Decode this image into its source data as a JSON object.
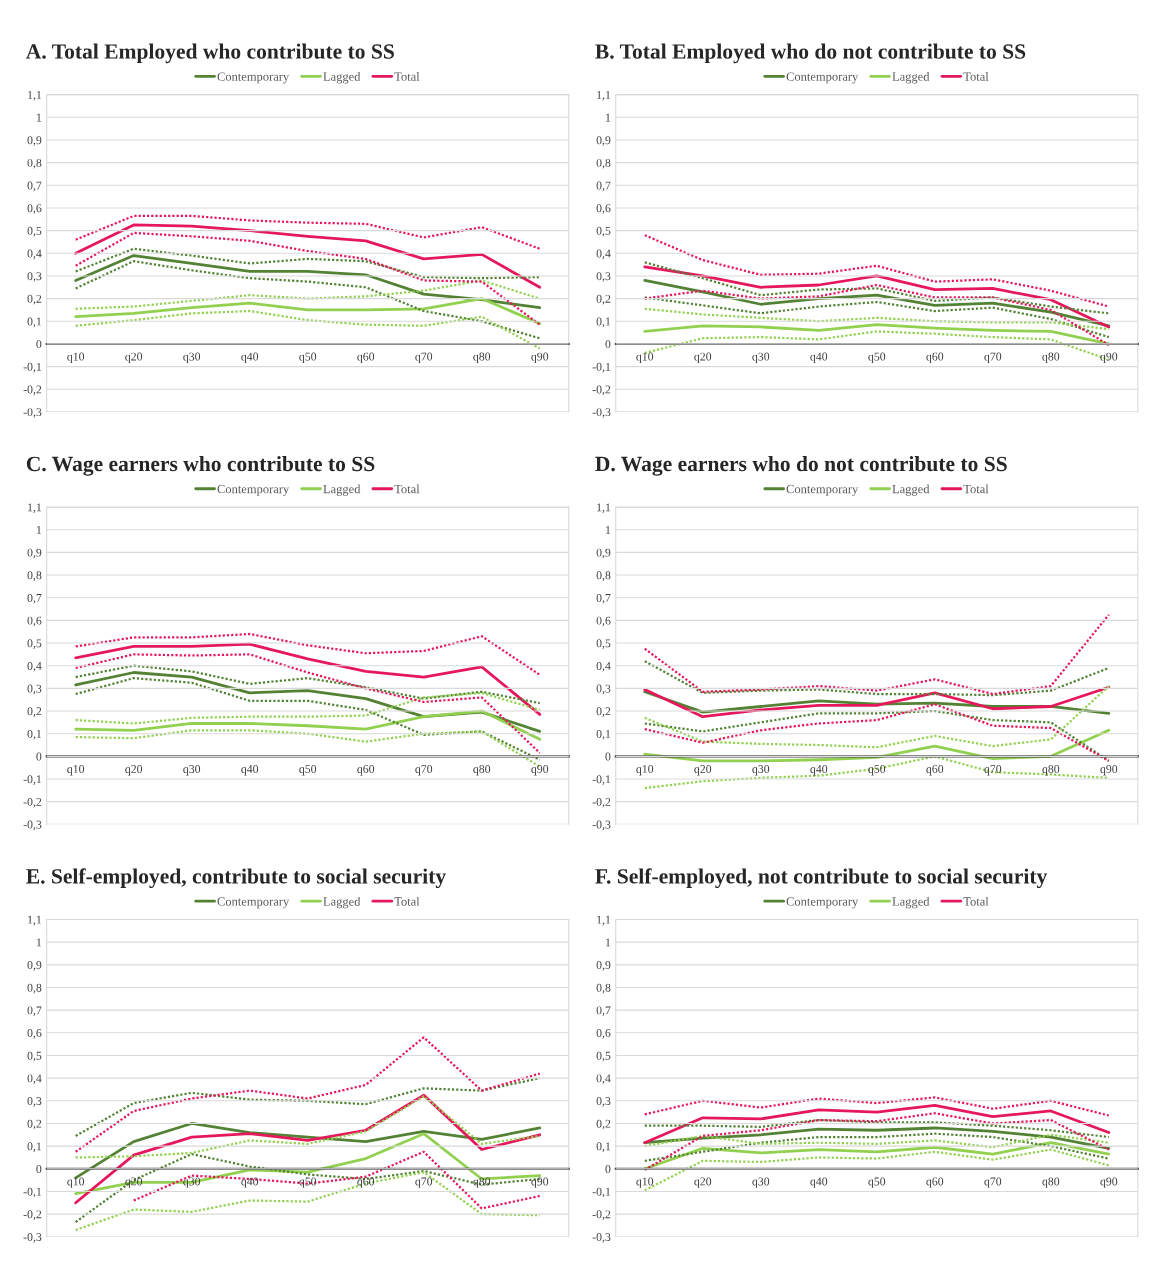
{
  "chart_data": [
    {
      "type": "line",
      "title": "A. Total Employed who contribute to SS",
      "categories": [
        "q10",
        "q20",
        "q30",
        "q40",
        "q50",
        "q60",
        "q70",
        "q80",
        "q90"
      ],
      "ylim": [
        -0.3,
        1.1
      ],
      "yticks": [
        {
          "value": -0.3,
          "label": "-0,3"
        },
        {
          "value": -0.2,
          "label": "-0,2"
        },
        {
          "value": -0.1,
          "label": "-0,1"
        },
        0,
        {
          "value": 0.1,
          "label": "0,1"
        },
        {
          "value": 0.2,
          "label": "0,2"
        },
        {
          "value": 0.3,
          "label": "0,3"
        },
        {
          "value": 0.4,
          "label": "0,4"
        },
        {
          "value": 0.5,
          "label": "0,5"
        },
        {
          "value": 0.6,
          "label": "0,6"
        },
        {
          "value": 0.7,
          "label": "0,7"
        },
        {
          "value": 0.8,
          "label": "0,8"
        },
        {
          "value": 0.9,
          "label": "0,9"
        },
        1,
        {
          "value": 1.1,
          "label": "1,1"
        }
      ],
      "grid": "y",
      "legend": "top",
      "series": [
        {
          "name": "Contemporary",
          "color": "#548235",
          "values": [
            0.28,
            0.39,
            0.355,
            0.32,
            0.32,
            0.305,
            0.22,
            0.195,
            0.16
          ]
        },
        {
          "name": "Lagged",
          "color": "#92d050",
          "values": [
            0.12,
            0.135,
            0.16,
            0.18,
            0.15,
            0.15,
            0.155,
            0.2,
            0.09
          ]
        },
        {
          "name": "Total",
          "color": "#e6185c",
          "values": [
            0.4,
            0.525,
            0.52,
            0.5,
            0.475,
            0.455,
            0.375,
            0.395,
            0.25
          ]
        },
        {
          "color": "#548235",
          "line_style": "dotted",
          "values": [
            0.245,
            0.365,
            0.325,
            0.29,
            0.275,
            0.25,
            0.145,
            0.1,
            0.025
          ]
        },
        {
          "color": "#548235",
          "line_style": "dotted",
          "values": [
            0.32,
            0.42,
            0.39,
            0.355,
            0.375,
            0.365,
            0.295,
            0.29,
            0.295
          ]
        },
        {
          "color": "#92d050",
          "line_style": "dotted",
          "values": [
            0.08,
            0.105,
            0.135,
            0.145,
            0.105,
            0.085,
            0.08,
            0.12,
            -0.02
          ]
        },
        {
          "color": "#92d050",
          "line_style": "dotted",
          "values": [
            0.155,
            0.165,
            0.19,
            0.215,
            0.2,
            0.21,
            0.235,
            0.28,
            0.2
          ]
        },
        {
          "color": "#e6185c",
          "line_style": "dotted",
          "values": [
            0.345,
            0.49,
            0.475,
            0.455,
            0.41,
            0.375,
            0.28,
            0.275,
            0.085
          ]
        },
        {
          "color": "#e6185c",
          "line_style": "dotted",
          "values": [
            0.46,
            0.565,
            0.565,
            0.545,
            0.535,
            0.53,
            0.47,
            0.515,
            0.42
          ]
        }
      ]
    },
    {
      "type": "line",
      "title": "B. Total Employed who do not contribute to SS",
      "categories": [
        "q10",
        "q20",
        "q30",
        "q40",
        "q50",
        "q60",
        "q70",
        "q80",
        "q90"
      ],
      "ylim": [
        -0.3,
        1.1
      ],
      "yticks": [
        {
          "value": -0.3,
          "label": "-0,3"
        },
        {
          "value": -0.2,
          "label": "-0,2"
        },
        {
          "value": -0.1,
          "label": "-0,1"
        },
        0,
        {
          "value": 0.1,
          "label": "0,1"
        },
        {
          "value": 0.2,
          "label": "0,2"
        },
        {
          "value": 0.3,
          "label": "0,3"
        },
        {
          "value": 0.4,
          "label": "0,4"
        },
        {
          "value": 0.5,
          "label": "0,5"
        },
        {
          "value": 0.6,
          "label": "0,6"
        },
        {
          "value": 0.7,
          "label": "0,7"
        },
        {
          "value": 0.8,
          "label": "0,8"
        },
        {
          "value": 0.9,
          "label": "0,9"
        },
        1,
        {
          "value": 1.1,
          "label": "1,1"
        }
      ],
      "grid": "y",
      "legend": "top",
      "series": [
        {
          "name": "Contemporary",
          "color": "#548235",
          "values": [
            0.28,
            0.23,
            0.175,
            0.2,
            0.215,
            0.17,
            0.18,
            0.14,
            0.08
          ]
        },
        {
          "name": "Lagged",
          "color": "#92d050",
          "values": [
            0.055,
            0.08,
            0.075,
            0.06,
            0.085,
            0.07,
            0.06,
            0.055,
            0.0
          ]
        },
        {
          "name": "Total",
          "color": "#e6185c",
          "values": [
            0.34,
            0.3,
            0.25,
            0.26,
            0.3,
            0.24,
            0.245,
            0.195,
            0.075
          ]
        },
        {
          "color": "#548235",
          "line_style": "dotted",
          "values": [
            0.205,
            0.17,
            0.135,
            0.165,
            0.185,
            0.145,
            0.16,
            0.11,
            0.03
          ]
        },
        {
          "color": "#548235",
          "line_style": "dotted",
          "values": [
            0.36,
            0.29,
            0.215,
            0.24,
            0.245,
            0.19,
            0.205,
            0.165,
            0.135
          ]
        },
        {
          "color": "#92d050",
          "line_style": "dotted",
          "values": [
            -0.04,
            0.025,
            0.03,
            0.02,
            0.055,
            0.045,
            0.03,
            0.02,
            -0.07
          ]
        },
        {
          "color": "#92d050",
          "line_style": "dotted",
          "values": [
            0.155,
            0.13,
            0.115,
            0.1,
            0.115,
            0.1,
            0.095,
            0.095,
            0.065
          ]
        },
        {
          "color": "#e6185c",
          "line_style": "dotted",
          "values": [
            0.2,
            0.235,
            0.2,
            0.21,
            0.26,
            0.205,
            0.205,
            0.15,
            -0.005
          ]
        },
        {
          "color": "#e6185c",
          "line_style": "dotted",
          "values": [
            0.48,
            0.37,
            0.305,
            0.31,
            0.345,
            0.275,
            0.285,
            0.235,
            0.165
          ]
        }
      ]
    },
    {
      "type": "line",
      "title": "C. Wage earners who contribute to SS",
      "categories": [
        "q10",
        "q20",
        "q30",
        "q40",
        "q50",
        "q60",
        "q70",
        "q80",
        "q90"
      ],
      "ylim": [
        -0.3,
        1.1
      ],
      "yticks": [
        {
          "value": -0.3,
          "label": "-0,3"
        },
        {
          "value": -0.2,
          "label": "-0,2"
        },
        {
          "value": -0.1,
          "label": "-0,1"
        },
        0,
        {
          "value": 0.1,
          "label": "0,1"
        },
        {
          "value": 0.2,
          "label": "0,2"
        },
        {
          "value": 0.3,
          "label": "0,3"
        },
        {
          "value": 0.4,
          "label": "0,4"
        },
        {
          "value": 0.5,
          "label": "0,5"
        },
        {
          "value": 0.6,
          "label": "0,6"
        },
        {
          "value": 0.7,
          "label": "0,7"
        },
        {
          "value": 0.8,
          "label": "0,8"
        },
        {
          "value": 0.9,
          "label": "0,9"
        },
        1,
        {
          "value": 1.1,
          "label": "1,1"
        }
      ],
      "grid": "y",
      "legend": "top",
      "series": [
        {
          "name": "Contemporary",
          "color": "#548235",
          "values": [
            0.315,
            0.37,
            0.35,
            0.28,
            0.29,
            0.255,
            0.175,
            0.195,
            0.11
          ]
        },
        {
          "name": "Lagged",
          "color": "#92d050",
          "values": [
            0.12,
            0.115,
            0.145,
            0.145,
            0.135,
            0.12,
            0.175,
            0.2,
            0.075
          ]
        },
        {
          "name": "Total",
          "color": "#e6185c",
          "values": [
            0.435,
            0.485,
            0.485,
            0.495,
            0.43,
            0.375,
            0.35,
            0.395,
            0.185
          ]
        },
        {
          "color": "#548235",
          "line_style": "dotted",
          "values": [
            0.275,
            0.345,
            0.325,
            0.245,
            0.245,
            0.205,
            0.095,
            0.11,
            -0.015
          ]
        },
        {
          "color": "#548235",
          "line_style": "dotted",
          "values": [
            0.35,
            0.4,
            0.375,
            0.32,
            0.345,
            0.305,
            0.255,
            0.285,
            0.235
          ]
        },
        {
          "color": "#92d050",
          "line_style": "dotted",
          "values": [
            0.085,
            0.08,
            0.115,
            0.115,
            0.1,
            0.065,
            0.1,
            0.11,
            -0.045
          ]
        },
        {
          "color": "#92d050",
          "line_style": "dotted",
          "values": [
            0.16,
            0.145,
            0.17,
            0.175,
            0.175,
            0.18,
            0.26,
            0.28,
            0.205
          ]
        },
        {
          "color": "#e6185c",
          "line_style": "dotted",
          "values": [
            0.39,
            0.45,
            0.445,
            0.45,
            0.37,
            0.3,
            0.24,
            0.26,
            0.015
          ]
        },
        {
          "color": "#e6185c",
          "line_style": "dotted",
          "values": [
            0.485,
            0.525,
            0.525,
            0.54,
            0.49,
            0.455,
            0.465,
            0.53,
            0.36
          ]
        }
      ]
    },
    {
      "type": "line",
      "title": "D. Wage earners who do not contribute to SS",
      "categories": [
        "q10",
        "q20",
        "q30",
        "q40",
        "q50",
        "q60",
        "q70",
        "q80",
        "q90"
      ],
      "ylim": [
        -0.3,
        1.1
      ],
      "yticks": [
        {
          "value": -0.3,
          "label": "-0,3"
        },
        {
          "value": -0.2,
          "label": "-0,2"
        },
        {
          "value": -0.1,
          "label": "-0,1"
        },
        0,
        {
          "value": 0.1,
          "label": "0,1"
        },
        {
          "value": 0.2,
          "label": "0,2"
        },
        {
          "value": 0.3,
          "label": "0,3"
        },
        {
          "value": 0.4,
          "label": "0,4"
        },
        {
          "value": 0.5,
          "label": "0,5"
        },
        {
          "value": 0.6,
          "label": "0,6"
        },
        {
          "value": 0.7,
          "label": "0,7"
        },
        {
          "value": 0.8,
          "label": "0,8"
        },
        {
          "value": 0.9,
          "label": "0,9"
        },
        1,
        {
          "value": 1.1,
          "label": "1,1"
        }
      ],
      "grid": "y",
      "legend": "top",
      "series": [
        {
          "name": "Contemporary",
          "color": "#548235",
          "values": [
            0.285,
            0.195,
            0.22,
            0.245,
            0.23,
            0.235,
            0.22,
            0.22,
            0.19
          ]
        },
        {
          "name": "Lagged",
          "color": "#92d050",
          "values": [
            0.01,
            -0.02,
            -0.02,
            -0.015,
            -0.005,
            0.045,
            -0.01,
            0.0,
            0.115
          ]
        },
        {
          "name": "Total",
          "color": "#e6185c",
          "values": [
            0.295,
            0.175,
            0.205,
            0.225,
            0.225,
            0.28,
            0.21,
            0.22,
            0.305
          ]
        },
        {
          "color": "#548235",
          "line_style": "dotted",
          "values": [
            0.145,
            0.11,
            0.15,
            0.19,
            0.19,
            0.2,
            0.16,
            0.15,
            -0.02
          ]
        },
        {
          "color": "#548235",
          "line_style": "dotted",
          "values": [
            0.42,
            0.28,
            0.29,
            0.295,
            0.275,
            0.275,
            0.27,
            0.29,
            0.39
          ]
        },
        {
          "color": "#92d050",
          "line_style": "dotted",
          "values": [
            -0.14,
            -0.11,
            -0.095,
            -0.085,
            -0.055,
            0.0,
            -0.07,
            -0.08,
            -0.095
          ]
        },
        {
          "color": "#92d050",
          "line_style": "dotted",
          "values": [
            0.17,
            0.065,
            0.055,
            0.05,
            0.04,
            0.09,
            0.045,
            0.075,
            0.31
          ]
        },
        {
          "color": "#e6185c",
          "line_style": "dotted",
          "values": [
            0.12,
            0.06,
            0.115,
            0.145,
            0.16,
            0.23,
            0.135,
            0.125,
            -0.02
          ]
        },
        {
          "color": "#e6185c",
          "line_style": "dotted",
          "values": [
            0.475,
            0.285,
            0.295,
            0.31,
            0.29,
            0.34,
            0.275,
            0.31,
            0.625
          ]
        }
      ]
    },
    {
      "type": "line",
      "title": "E. Self-employed, contribute to social security",
      "categories": [
        "q10",
        "q20",
        "q30",
        "q40",
        "q50",
        "q60",
        "q70",
        "q80",
        "q90"
      ],
      "ylim": [
        -0.3,
        1.1
      ],
      "yticks": [
        {
          "value": -0.3,
          "label": "-0,3"
        },
        {
          "value": -0.2,
          "label": "-0,2"
        },
        {
          "value": -0.1,
          "label": "-0,1"
        },
        0,
        {
          "value": 0.1,
          "label": "0,1"
        },
        {
          "value": 0.2,
          "label": "0,2"
        },
        {
          "value": 0.3,
          "label": "0,3"
        },
        {
          "value": 0.4,
          "label": "0,4"
        },
        {
          "value": 0.5,
          "label": "0,5"
        },
        {
          "value": 0.6,
          "label": "0,6"
        },
        {
          "value": 0.7,
          "label": "0,7"
        },
        {
          "value": 0.8,
          "label": "0,8"
        },
        {
          "value": 0.9,
          "label": "0,9"
        },
        1,
        {
          "value": 1.1,
          "label": "1,1"
        }
      ],
      "grid": "y",
      "legend": "top",
      "series": [
        {
          "name": "Contemporary",
          "color": "#548235",
          "values": [
            -0.04,
            0.12,
            0.2,
            0.16,
            0.14,
            0.12,
            0.165,
            0.13,
            0.18
          ]
        },
        {
          "name": "Lagged",
          "color": "#92d050",
          "values": [
            -0.11,
            -0.06,
            -0.06,
            -0.005,
            -0.015,
            0.045,
            0.155,
            -0.045,
            -0.03
          ]
        },
        {
          "name": "Total",
          "color": "#e6185c",
          "values": [
            -0.15,
            0.06,
            0.14,
            0.155,
            0.125,
            0.17,
            0.325,
            0.085,
            0.15
          ]
        },
        {
          "color": "#548235",
          "line_style": "dotted",
          "values": [
            -0.235,
            -0.05,
            0.065,
            0.01,
            -0.025,
            -0.045,
            -0.01,
            -0.07,
            -0.045
          ]
        },
        {
          "color": "#548235",
          "line_style": "dotted",
          "values": [
            0.145,
            0.29,
            0.335,
            0.305,
            0.3,
            0.285,
            0.355,
            0.345,
            0.4
          ]
        },
        {
          "color": "#92d050",
          "line_style": "dotted",
          "values": [
            -0.27,
            -0.18,
            -0.19,
            -0.14,
            -0.145,
            -0.065,
            -0.015,
            -0.2,
            -0.205
          ]
        },
        {
          "color": "#92d050",
          "line_style": "dotted",
          "values": [
            0.05,
            0.055,
            0.07,
            0.125,
            0.11,
            0.165,
            0.32,
            0.11,
            0.145
          ]
        },
        {
          "color": "#e6185c",
          "line_style": "dotted",
          "values": [
            null,
            -0.14,
            -0.03,
            -0.045,
            -0.065,
            -0.035,
            0.075,
            -0.175,
            -0.12
          ]
        },
        {
          "color": "#e6185c",
          "line_style": "dotted",
          "values": [
            0.075,
            0.255,
            0.31,
            0.345,
            0.31,
            0.37,
            0.58,
            0.345,
            0.42
          ]
        }
      ]
    },
    {
      "type": "line",
      "title": "F. Self-employed, not contribute to social security",
      "categories": [
        "q10",
        "q20",
        "q30",
        "q40",
        "q50",
        "q60",
        "q70",
        "q80",
        "q90"
      ],
      "ylim": [
        -0.3,
        1.1
      ],
      "yticks": [
        {
          "value": -0.3,
          "label": "-0,3"
        },
        {
          "value": -0.2,
          "label": "-0,2"
        },
        {
          "value": -0.1,
          "label": "-0,1"
        },
        0,
        {
          "value": 0.1,
          "label": "0,1"
        },
        {
          "value": 0.2,
          "label": "0,2"
        },
        {
          "value": 0.3,
          "label": "0,3"
        },
        {
          "value": 0.4,
          "label": "0,4"
        },
        {
          "value": 0.5,
          "label": "0,5"
        },
        {
          "value": 0.6,
          "label": "0,6"
        },
        {
          "value": 0.7,
          "label": "0,7"
        },
        {
          "value": 0.8,
          "label": "0,8"
        },
        {
          "value": 0.9,
          "label": "0,9"
        },
        1,
        {
          "value": 1.1,
          "label": "1,1"
        }
      ],
      "grid": "y",
      "legend": "top",
      "series": [
        {
          "name": "Contemporary",
          "color": "#548235",
          "values": [
            0.115,
            0.135,
            0.15,
            0.175,
            0.17,
            0.18,
            0.165,
            0.14,
            0.09
          ]
        },
        {
          "name": "Lagged",
          "color": "#92d050",
          "values": [
            0.0,
            0.09,
            0.07,
            0.085,
            0.075,
            0.095,
            0.065,
            0.115,
            0.065
          ]
        },
        {
          "name": "Total",
          "color": "#e6185c",
          "values": [
            0.115,
            0.225,
            0.22,
            0.26,
            0.25,
            0.28,
            0.23,
            0.255,
            0.16
          ]
        },
        {
          "color": "#548235",
          "line_style": "dotted",
          "values": [
            0.035,
            0.075,
            0.115,
            0.14,
            0.14,
            0.155,
            0.14,
            0.1,
            0.045
          ]
        },
        {
          "color": "#548235",
          "line_style": "dotted",
          "values": [
            0.19,
            0.19,
            0.185,
            0.215,
            0.205,
            0.205,
            0.19,
            0.17,
            0.14
          ]
        },
        {
          "color": "#92d050",
          "line_style": "dotted",
          "values": [
            -0.095,
            0.035,
            0.03,
            0.05,
            0.045,
            0.075,
            0.04,
            0.085,
            0.015
          ]
        },
        {
          "color": "#92d050",
          "line_style": "dotted",
          "values": [
            0.1,
            0.145,
            0.11,
            0.115,
            0.11,
            0.125,
            0.095,
            0.15,
            0.115
          ]
        },
        {
          "color": "#e6185c",
          "line_style": "dotted",
          "values": [
            -0.005,
            0.145,
            0.17,
            0.215,
            0.21,
            0.245,
            0.2,
            0.215,
            0.085
          ]
        },
        {
          "color": "#e6185c",
          "line_style": "dotted",
          "values": [
            0.24,
            0.3,
            0.27,
            0.31,
            0.29,
            0.315,
            0.265,
            0.3,
            0.235
          ]
        }
      ]
    }
  ]
}
